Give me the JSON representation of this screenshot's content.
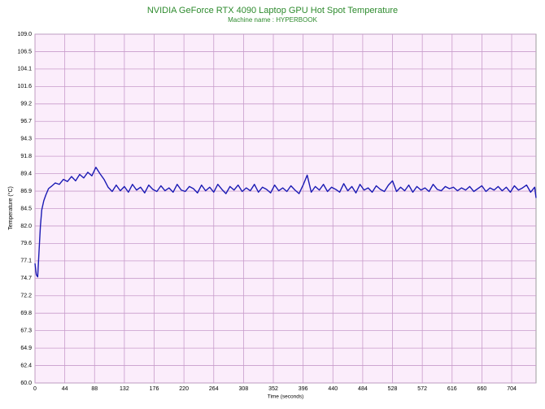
{
  "chart_data": {
    "type": "line",
    "title": "NVIDIA GeForce RTX 4090 Laptop GPU Hot Spot Temperature",
    "subtitle": "Machine name : HYPERBOOK",
    "x_label": "Time (seconds)",
    "y_label": "Temperature (°C)",
    "color": "#1a1ab4",
    "grid": true,
    "xlim": [
      0,
      740
    ],
    "ylim": [
      60,
      109
    ],
    "xticks": [
      0,
      44,
      88,
      132,
      176,
      220,
      264,
      308,
      352,
      396,
      440,
      484,
      528,
      572,
      616,
      660,
      704
    ],
    "yticks": [
      {
        "value": 60,
        "label": "60.0"
      },
      {
        "value": 62.45,
        "label": "62.4"
      },
      {
        "value": 64.9,
        "label": "64.9"
      },
      {
        "value": 67.35,
        "label": "67.3"
      },
      {
        "value": 69.8,
        "label": "69.8"
      },
      {
        "value": 72.25,
        "label": "72.2"
      },
      {
        "value": 74.7,
        "label": "74.7"
      },
      {
        "value": 77.15,
        "label": "77.1"
      },
      {
        "value": 79.6,
        "label": "79.6"
      },
      {
        "value": 82.05,
        "label": "82.0"
      },
      {
        "value": 84.5,
        "label": "84.5"
      },
      {
        "value": 86.95,
        "label": "86.9"
      },
      {
        "value": 89.4,
        "label": "89.4"
      },
      {
        "value": 91.85,
        "label": "91.8"
      },
      {
        "value": 94.3,
        "label": "94.3"
      },
      {
        "value": 96.75,
        "label": "96.7"
      },
      {
        "value": 99.2,
        "label": "99.2"
      },
      {
        "value": 101.65,
        "label": "101.6"
      },
      {
        "value": 104.1,
        "label": "104.1"
      },
      {
        "value": 106.55,
        "label": "106.5"
      },
      {
        "value": 109,
        "label": "109.0"
      }
    ],
    "x": [
      0,
      2,
      4,
      6,
      8,
      10,
      13,
      16,
      20,
      24,
      30,
      36,
      42,
      48,
      54,
      60,
      66,
      72,
      78,
      84,
      90,
      96,
      102,
      108,
      114,
      120,
      126,
      132,
      138,
      144,
      150,
      156,
      162,
      168,
      174,
      180,
      186,
      192,
      198,
      204,
      210,
      216,
      222,
      228,
      234,
      240,
      246,
      252,
      258,
      264,
      270,
      276,
      282,
      288,
      294,
      300,
      306,
      312,
      318,
      324,
      330,
      336,
      342,
      348,
      354,
      360,
      366,
      372,
      378,
      384,
      390,
      396,
      402,
      408,
      414,
      420,
      426,
      432,
      438,
      444,
      450,
      456,
      462,
      468,
      474,
      480,
      486,
      492,
      498,
      504,
      510,
      516,
      522,
      528,
      534,
      540,
      546,
      552,
      558,
      564,
      570,
      576,
      582,
      588,
      594,
      600,
      606,
      612,
      618,
      624,
      630,
      636,
      642,
      648,
      654,
      660,
      666,
      672,
      678,
      684,
      690,
      696,
      702,
      708,
      714,
      720,
      726,
      732,
      738,
      740
    ],
    "values": [
      76.8,
      75.2,
      74.9,
      78.5,
      82.0,
      84.3,
      85.6,
      86.4,
      87.3,
      87.6,
      88.1,
      87.9,
      88.6,
      88.3,
      89.0,
      88.4,
      89.3,
      88.8,
      89.6,
      89.1,
      90.3,
      89.4,
      88.6,
      87.5,
      86.9,
      87.8,
      87.0,
      87.6,
      86.8,
      87.9,
      87.1,
      87.5,
      86.7,
      87.8,
      87.2,
      86.9,
      87.7,
      87.0,
      87.4,
      86.8,
      87.9,
      87.1,
      86.9,
      87.6,
      87.3,
      86.7,
      87.8,
      87.0,
      87.5,
      86.8,
      87.9,
      87.2,
      86.6,
      87.6,
      87.1,
      87.8,
      86.9,
      87.4,
      87.0,
      87.9,
      86.8,
      87.5,
      87.2,
      86.7,
      87.8,
      87.0,
      87.4,
      86.9,
      87.7,
      87.1,
      86.6,
      87.8,
      89.2,
      86.8,
      87.6,
      87.1,
      87.9,
      86.9,
      87.5,
      87.2,
      86.8,
      88.0,
      87.0,
      87.6,
      86.7,
      87.9,
      87.1,
      87.4,
      86.8,
      87.7,
      87.2,
      86.9,
      87.8,
      88.4,
      86.9,
      87.5,
      87.0,
      87.8,
      86.8,
      87.6,
      87.1,
      87.4,
      86.9,
      87.9,
      87.2,
      87.0,
      87.6,
      87.3,
      87.5,
      87.0,
      87.4,
      87.1,
      87.6,
      86.9,
      87.3,
      87.7,
      86.9,
      87.4,
      87.1,
      87.6,
      87.0,
      87.5,
      86.8,
      87.7,
      87.1,
      87.4,
      87.8,
      86.8,
      87.5,
      86.0
    ]
  }
}
